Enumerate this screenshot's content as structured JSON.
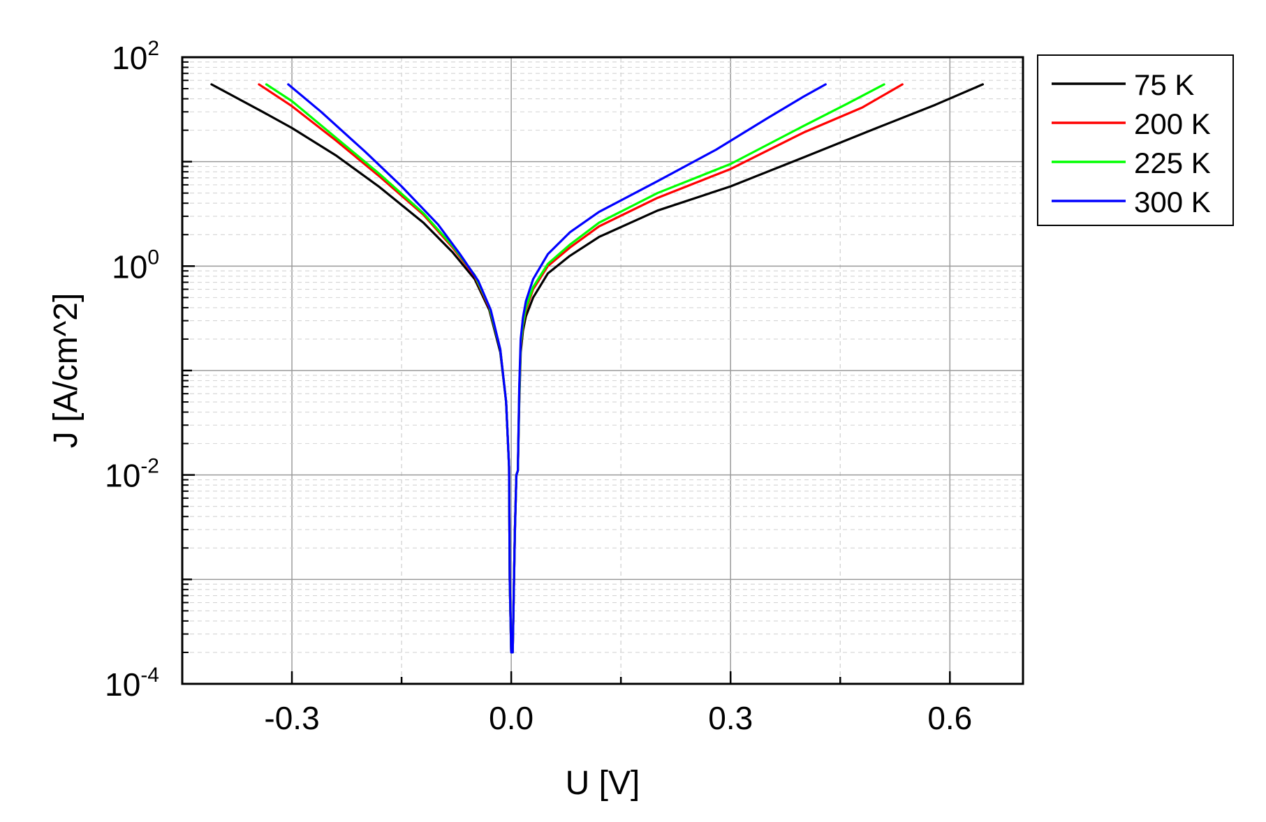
{
  "chart_data": {
    "type": "line",
    "xlabel": "U [V]",
    "ylabel": "J [A/cm^2]",
    "xlim": [
      -0.45,
      0.7
    ],
    "ylim": [
      0.0001,
      100
    ],
    "yscale": "log",
    "grid": true,
    "legend_position": "outside-top-right",
    "xticks": [
      {
        "value": -0.3,
        "label": "-0.3"
      },
      {
        "value": 0.0,
        "label": "0.0"
      },
      {
        "value": 0.3,
        "label": "0.3"
      },
      {
        "value": 0.6,
        "label": "0.6"
      }
    ],
    "yticks": [
      {
        "value": 100,
        "base": "10",
        "exp": "2"
      },
      {
        "value": 1,
        "base": "10",
        "exp": "0"
      },
      {
        "value": 0.01,
        "base": "10",
        "exp": "-2"
      },
      {
        "value": 0.0001,
        "base": "10",
        "exp": "-4"
      }
    ],
    "series": [
      {
        "name": "75 K",
        "color": "#000000",
        "x": [
          -0.41,
          -0.34,
          -0.3,
          -0.24,
          -0.18,
          -0.12,
          -0.08,
          -0.05,
          -0.03,
          -0.015,
          -0.007,
          -0.003,
          -0.002,
          0.0,
          0.002,
          0.005,
          0.007,
          0.009,
          0.011,
          0.013,
          0.016,
          0.02,
          0.03,
          0.05,
          0.08,
          0.12,
          0.2,
          0.3,
          0.4,
          0.5,
          0.58,
          0.645
        ],
        "y": [
          55,
          30,
          21,
          11.5,
          5.7,
          2.6,
          1.35,
          0.75,
          0.38,
          0.15,
          0.05,
          0.012,
          0.001,
          0.0002,
          0.0002,
          0.003,
          0.01,
          0.011,
          0.05,
          0.15,
          0.24,
          0.33,
          0.5,
          0.85,
          1.25,
          1.9,
          3.4,
          5.8,
          11,
          21,
          35,
          55
        ]
      },
      {
        "name": "200 K",
        "color": "#ff0000",
        "x": [
          -0.345,
          -0.3,
          -0.24,
          -0.18,
          -0.12,
          -0.08,
          -0.05,
          -0.03,
          -0.015,
          -0.007,
          -0.003,
          -0.002,
          0.0,
          0.002,
          0.005,
          0.007,
          0.009,
          0.011,
          0.013,
          0.016,
          0.02,
          0.03,
          0.05,
          0.08,
          0.12,
          0.2,
          0.3,
          0.4,
          0.48,
          0.535
        ],
        "y": [
          55,
          34,
          16,
          7.2,
          3.1,
          1.5,
          0.8,
          0.4,
          0.16,
          0.05,
          0.012,
          0.001,
          0.0002,
          0.0002,
          0.003,
          0.01,
          0.011,
          0.06,
          0.17,
          0.27,
          0.38,
          0.6,
          1.0,
          1.5,
          2.4,
          4.5,
          8.5,
          19,
          33,
          55
        ]
      },
      {
        "name": "225 K",
        "color": "#00ff00",
        "x": [
          -0.335,
          -0.3,
          -0.24,
          -0.18,
          -0.12,
          -0.08,
          -0.05,
          -0.03,
          -0.015,
          -0.007,
          -0.003,
          -0.002,
          0.0,
          0.002,
          0.005,
          0.007,
          0.009,
          0.011,
          0.013,
          0.016,
          0.02,
          0.03,
          0.05,
          0.08,
          0.12,
          0.2,
          0.3,
          0.4,
          0.46,
          0.51
        ],
        "y": [
          55,
          38,
          17,
          7.6,
          3.2,
          1.55,
          0.82,
          0.41,
          0.16,
          0.05,
          0.012,
          0.001,
          0.0002,
          0.0002,
          0.003,
          0.01,
          0.011,
          0.06,
          0.18,
          0.28,
          0.4,
          0.63,
          1.05,
          1.6,
          2.6,
          5.0,
          9.5,
          22,
          36,
          55
        ]
      },
      {
        "name": "300 K",
        "color": "#0000ff",
        "x": [
          -0.305,
          -0.26,
          -0.2,
          -0.15,
          -0.1,
          -0.07,
          -0.045,
          -0.028,
          -0.015,
          -0.007,
          -0.003,
          -0.002,
          0.0,
          0.002,
          0.005,
          0.007,
          0.009,
          0.011,
          0.013,
          0.016,
          0.02,
          0.03,
          0.05,
          0.08,
          0.12,
          0.2,
          0.28,
          0.35,
          0.4,
          0.43
        ],
        "y": [
          55,
          30,
          12.5,
          5.8,
          2.5,
          1.3,
          0.72,
          0.38,
          0.16,
          0.05,
          0.012,
          0.001,
          0.0002,
          0.0002,
          0.003,
          0.01,
          0.011,
          0.07,
          0.2,
          0.32,
          0.46,
          0.75,
          1.3,
          2.1,
          3.3,
          6.5,
          13,
          26,
          42,
          55
        ]
      }
    ]
  }
}
